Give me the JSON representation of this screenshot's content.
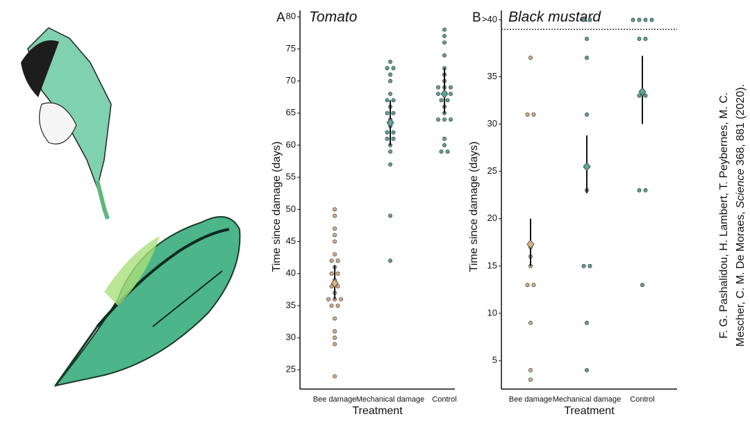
{
  "chart_data": [
    {
      "type": "strip",
      "panel": "A",
      "title": "Tomato",
      "xlabel": "Treatment",
      "ylabel": "Time since damage (days)",
      "categories": [
        "Bee damage",
        "Mechanical damage",
        "Control"
      ],
      "colors": [
        "#d9b185",
        "#5da596",
        "#5da596"
      ],
      "values": [
        [
          50,
          49,
          47,
          46,
          45,
          43,
          42,
          42,
          41,
          40,
          40,
          39,
          38,
          38,
          37,
          36,
          36,
          36,
          35,
          35,
          33,
          31,
          30,
          29,
          24
        ],
        [
          73,
          72,
          72,
          71,
          70,
          68,
          67,
          67,
          66,
          65,
          65,
          64,
          63,
          62,
          62,
          61,
          61,
          60,
          59,
          57,
          49,
          42
        ],
        [
          78,
          77,
          76,
          74,
          72,
          71,
          70,
          69,
          69,
          69,
          68,
          68,
          68,
          67,
          67,
          66,
          65,
          64,
          64,
          64,
          61,
          60,
          59,
          59
        ]
      ],
      "means": [
        38.5,
        63.5,
        68
      ],
      "ci": [
        [
          36,
          41.3
        ],
        [
          60,
          67
        ],
        [
          65,
          72
        ]
      ],
      "ylim": [
        22,
        81
      ],
      "yticks": [
        25,
        30,
        35,
        40,
        45,
        50,
        55,
        60,
        65,
        70,
        75,
        80
      ]
    },
    {
      "type": "strip",
      "panel": "B",
      "title": "Black mustard",
      "xlabel": "Treatment",
      "ylabel": "Time since damage (days)",
      "categories": [
        "Bee damage",
        "Mechanical damage",
        "Control"
      ],
      "colors": [
        "#d9b185",
        "#5da596",
        "#5da596"
      ],
      "values": [
        [
          37,
          31,
          31,
          17,
          16,
          15,
          13,
          13,
          9,
          4,
          3
        ],
        [
          41,
          41,
          39,
          37,
          31,
          23,
          15,
          15,
          9,
          4
        ],
        [
          41,
          41,
          41,
          41,
          39,
          39,
          33,
          33,
          23,
          23,
          13
        ]
      ],
      "means": [
        17.3,
        25.5,
        33.4
      ],
      "ci": [
        [
          15,
          20
        ],
        [
          22.7,
          28.8
        ],
        [
          30,
          37.2
        ]
      ],
      "reference_line": 40,
      "ylim": [
        2,
        42
      ],
      "yticks": [
        5,
        10,
        15,
        20,
        25,
        30,
        35,
        {
          "value": 41,
          "label": ">40"
        }
      ]
    }
  ],
  "caption": {
    "line1": "F. G. Pashalidou, H. Lambert, T. Peybernes, M. C.",
    "line2": [
      "Mescher, C. M. De Moraes, ",
      "Science",
      " 368, 881 (2020)."
    ]
  }
}
